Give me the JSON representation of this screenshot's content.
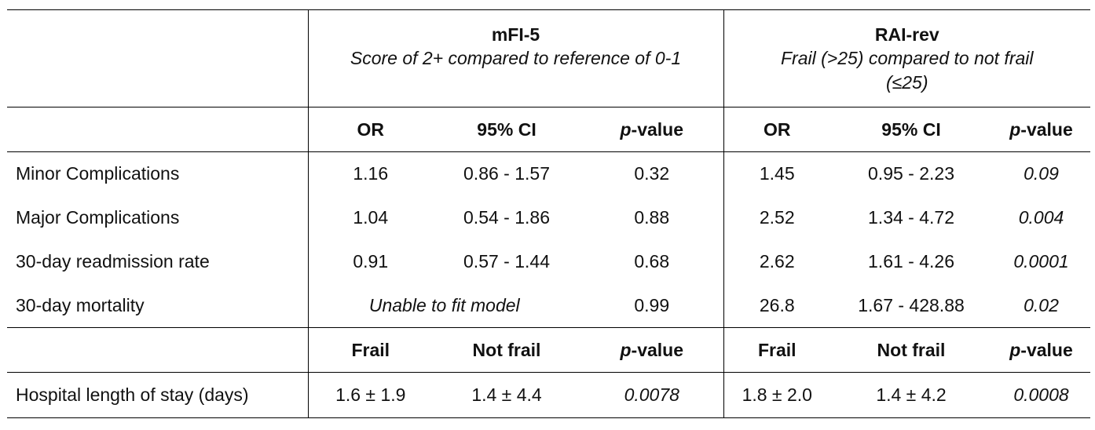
{
  "groups": {
    "mfi": {
      "title": "mFI-5",
      "subtitle": "Score of 2+ compared to reference of 0-1"
    },
    "rai": {
      "title": "RAI-rev",
      "subtitle_line1": "Frail (>25) compared to not frail",
      "subtitle_line2": "(≤25)"
    }
  },
  "header1": {
    "col1": "OR",
    "col2": "95% CI",
    "col3_italic": "p",
    "col3_rest": "-value"
  },
  "rows": [
    {
      "label": "Minor Complications",
      "mfi_or": "1.16",
      "mfi_ci": "0.86 - 1.57",
      "mfi_p": "0.32",
      "rai_or": "1.45",
      "rai_ci": "0.95 - 2.23",
      "rai_p": "0.09"
    },
    {
      "label": "Major Complications",
      "mfi_or": "1.04",
      "mfi_ci": "0.54 - 1.86",
      "mfi_p": "0.88",
      "rai_or": "2.52",
      "rai_ci": "1.34 - 4.72",
      "rai_p": "0.004"
    },
    {
      "label": "30-day readmission rate",
      "mfi_or": "0.91",
      "mfi_ci": "0.57 - 1.44",
      "mfi_p": "0.68",
      "rai_or": "2.62",
      "rai_ci": "1.61 - 4.26",
      "rai_p": "0.0001"
    }
  ],
  "mortality": {
    "label": "30-day mortality",
    "mfi_merged": "Unable to fit model",
    "mfi_p": "0.99",
    "rai_or": "26.8",
    "rai_ci": "1.67 - 428.88",
    "rai_p": "0.02"
  },
  "header2": {
    "col1": "Frail",
    "col2": "Not frail",
    "col3_italic": "p",
    "col3_rest": "-value"
  },
  "los": {
    "label": "Hospital length of stay (days)",
    "mfi_frail": "1.6 ± 1.9",
    "mfi_notfrail": "1.4 ± 4.4",
    "mfi_p": "0.0078",
    "rai_frail": "1.8 ± 2.0",
    "rai_notfrail": "1.4 ± 4.2",
    "rai_p": "0.0008"
  }
}
